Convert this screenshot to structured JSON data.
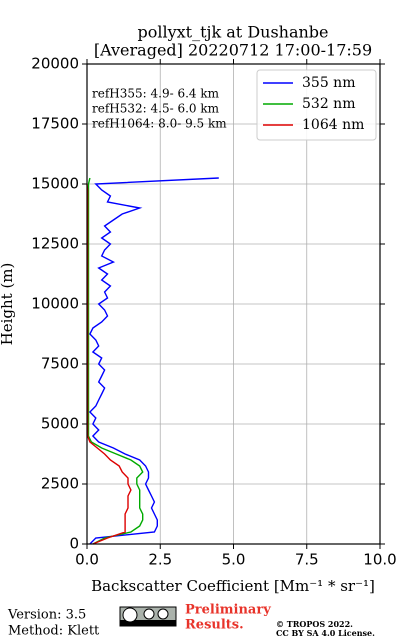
{
  "chart_data": {
    "type": "line",
    "title": "pollyxt_tjk at Dushanbe",
    "subtitle": "[Averaged] 20220712 17:00-17:59",
    "xlabel": "Backscatter Coefficient [Mm⁻¹ * sr⁻¹]",
    "ylabel": "Height (m)",
    "annotations": [
      "refH355:  4.9- 6.4 km",
      "refH532:  4.5- 6.0 km",
      "refH1064:  8.0- 9.5 km"
    ],
    "xlim": [
      0,
      10
    ],
    "xticks": [
      {
        "value": 0,
        "label": "0.0"
      },
      2.5,
      {
        "value": 5,
        "label": "5.0"
      },
      7.5,
      {
        "value": 10,
        "label": "10.0"
      }
    ],
    "ylim": [
      0,
      20000
    ],
    "yticks": [
      0,
      2500,
      5000,
      7500,
      10000,
      12500,
      15000,
      17500,
      20000
    ],
    "grid": true,
    "legend": "upper right",
    "heights": [
      0,
      250,
      500,
      750,
      1000,
      1250,
      1500,
      1750,
      2000,
      2250,
      2500,
      2750,
      3000,
      3250,
      3500,
      3750,
      4000,
      4250,
      4500,
      4750,
      5000,
      5250,
      5500,
      5750,
      6000,
      6250,
      6500,
      6750,
      7000,
      7250,
      7500,
      7750,
      8000,
      8250,
      8500,
      8750,
      9000,
      9250,
      9500,
      9750,
      10000,
      10250,
      10500,
      10750,
      11000,
      11250,
      11500,
      11750,
      12000,
      12250,
      12500,
      12750,
      13000,
      13250,
      13500,
      13750,
      14000,
      14250,
      14500,
      14750,
      15000,
      15250,
      15500
    ],
    "series": [
      {
        "name": "355 nm",
        "color": "#0000ff",
        "values": [
          0.1,
          0.3,
          2.3,
          2.4,
          2.4,
          2.3,
          2.2,
          2.3,
          2.2,
          2.1,
          2.0,
          2.1,
          2.1,
          2.0,
          1.8,
          1.3,
          0.9,
          0.4,
          0.2,
          0.4,
          0.2,
          0.3,
          0.1,
          0.3,
          0.4,
          0.5,
          0.6,
          0.4,
          0.5,
          0.6,
          0.4,
          0.5,
          0.2,
          0.4,
          0.3,
          0.1,
          0.2,
          0.5,
          0.7,
          0.6,
          0.4,
          0.7,
          0.6,
          0.8,
          0.5,
          0.7,
          0.4,
          0.9,
          0.5,
          0.6,
          0.8,
          0.5,
          0.8,
          0.6,
          0.9,
          1.2,
          1.8,
          0.7,
          0.8,
          0.5,
          0.3,
          4.5,
          null
        ]
      },
      {
        "name": "532 nm",
        "color": "#00aa00",
        "values": [
          0.2,
          0.6,
          1.5,
          1.8,
          1.9,
          1.9,
          1.8,
          1.8,
          1.8,
          1.8,
          1.7,
          1.7,
          1.9,
          1.8,
          1.5,
          1.0,
          0.5,
          0.15,
          0.05,
          0.05,
          0.05,
          0.05,
          0.05,
          0.05,
          0.05,
          0.05,
          0.05,
          0.05,
          0.05,
          0.05,
          0.05,
          0.05,
          0.05,
          0.05,
          0.05,
          0.05,
          0.05,
          0.05,
          0.05,
          0.05,
          0.05,
          0.05,
          0.05,
          0.05,
          0.05,
          0.05,
          0.05,
          0.05,
          0.05,
          0.05,
          0.05,
          0.05,
          0.05,
          0.05,
          0.05,
          0.05,
          0.05,
          0.05,
          0.05,
          0.05,
          0.05,
          0.1,
          null
        ]
      },
      {
        "name": "1064 nm",
        "color": "#dd0000",
        "values": [
          0.2,
          0.7,
          1.3,
          1.3,
          1.3,
          1.3,
          1.4,
          1.4,
          1.4,
          1.5,
          1.4,
          1.4,
          1.2,
          1.1,
          0.8,
          0.6,
          0.35,
          0.1,
          0.02,
          0.02,
          0.02,
          0.02,
          0.02,
          0.02,
          0.02,
          0.02,
          0.02,
          0.02,
          0.02,
          0.02,
          0.02,
          0.02,
          0.02,
          0.02,
          0.02,
          0.02,
          0.02,
          0.02,
          0.02,
          0.02,
          0.02,
          0.02,
          0.02,
          0.02,
          0.02,
          0.02,
          0.02,
          0.02,
          0.02,
          0.02,
          0.02,
          0.02,
          0.02,
          0.02,
          0.02,
          0.02,
          0.02,
          0.02,
          0.02,
          0.02,
          0.0,
          null,
          null
        ]
      }
    ]
  },
  "footer": {
    "version": "Version: 3.5",
    "method": "Method: Klett",
    "preliminary": [
      "Preliminary",
      "Results."
    ],
    "copyright": [
      "© TROPOS 2022.",
      "CC BY SA 4.0 License."
    ]
  }
}
